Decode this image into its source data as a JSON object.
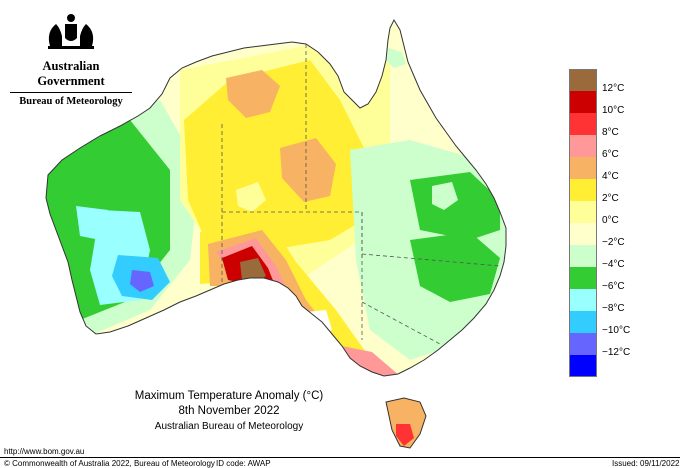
{
  "branding": {
    "government": "Australian Government",
    "bureau": "Bureau of Meteorology"
  },
  "title": {
    "line1": "Maximum Temperature Anomaly (°C)",
    "line2": "8th November 2022",
    "line3": "Australian Bureau of Meteorology"
  },
  "legend": {
    "items": [
      {
        "label": "12°C",
        "color": "#9b6a3c"
      },
      {
        "label": "10°C",
        "color": "#cc0000"
      },
      {
        "label": "8°C",
        "color": "#ff3333"
      },
      {
        "label": "6°C",
        "color": "#ff9999"
      },
      {
        "label": "4°C",
        "color": "#f7b263"
      },
      {
        "label": "2°C",
        "color": "#ffee33"
      },
      {
        "label": "0°C",
        "color": "#ffff99"
      },
      {
        "label": "−2°C",
        "color": "#ffffcc"
      },
      {
        "label": "−4°C",
        "color": "#ccffcc"
      },
      {
        "label": "−6°C",
        "color": "#33cc33"
      },
      {
        "label": "−8°C",
        "color": "#99ffff"
      },
      {
        "label": "−10°C",
        "color": "#33ccff"
      },
      {
        "label": "−12°C",
        "color": "#6666ff"
      },
      {
        "label": "",
        "color": "#0000ff"
      }
    ]
  },
  "footer": {
    "url": "http://www.bom.gov.au",
    "copyright": "© Commonwealth of Australia 2022, Bureau of Meteorology",
    "id_code": "ID code: AWAP",
    "issued": "Issued: 09/11/2022"
  },
  "palette": {
    "ocean": "#ffffff",
    "coast": "#333333",
    "state_border": "#555555"
  }
}
